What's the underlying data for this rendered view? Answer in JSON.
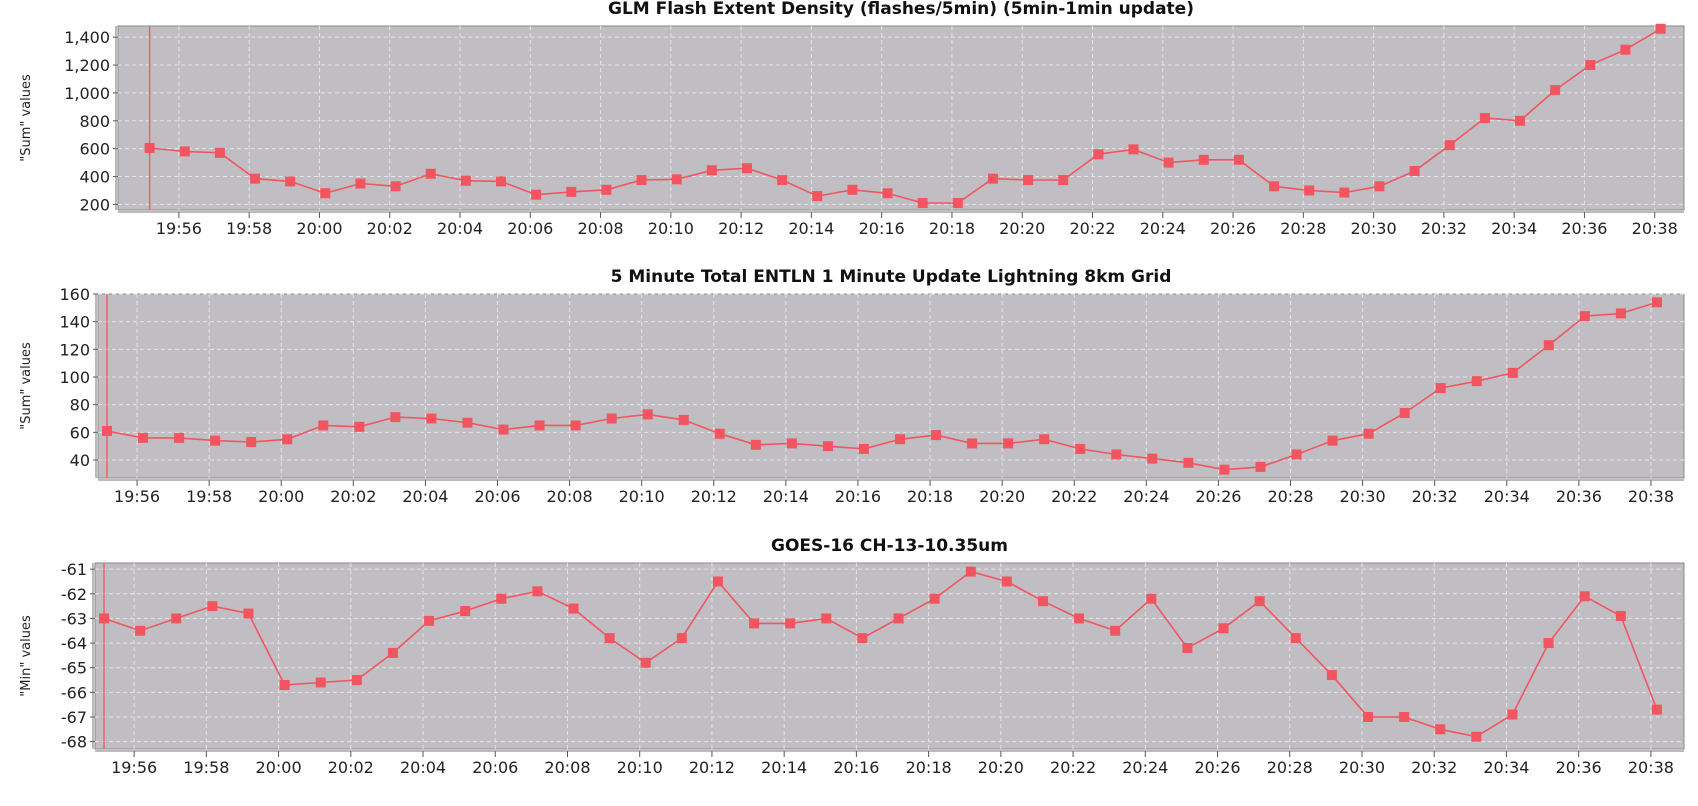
{
  "colors": {
    "plot_background": "#c1bec3",
    "grid": "#e4e3e6",
    "series": "#f25560",
    "marker_line": "#e8636a"
  },
  "chart_data": [
    {
      "type": "line",
      "title": "GLM Flash Extent Density (flashes/5min) (5min-1min update)",
      "ylabel": "\"Sum\" values",
      "ylim": [
        160,
        1480
      ],
      "yticks": [
        200,
        400,
        600,
        800,
        1000,
        1200,
        1400
      ],
      "ytick_labels": [
        "200",
        "400",
        "600",
        "800",
        "1,000",
        "1,200",
        "1,400"
      ],
      "xlim": [
        "19:54:16",
        "20:38:50"
      ],
      "xtick_labels": [
        "19:56",
        "19:58",
        "20:00",
        "20:02",
        "20:04",
        "20:06",
        "20:08",
        "20:10",
        "20:12",
        "20:14",
        "20:16",
        "20:18",
        "20:20",
        "20:22",
        "20:24",
        "20:26",
        "20:28",
        "20:30",
        "20:32",
        "20:34",
        "20:36",
        "20:38"
      ],
      "marker_time": "19:55:10",
      "grid": true,
      "x": [
        "19:55:10",
        "19:56:10",
        "19:57:10",
        "19:58:10",
        "19:59:10",
        "20:00:10",
        "20:01:10",
        "20:02:10",
        "20:03:10",
        "20:04:10",
        "20:05:10",
        "20:06:10",
        "20:07:10",
        "20:08:10",
        "20:09:10",
        "20:10:10",
        "20:11:10",
        "20:12:10",
        "20:13:10",
        "20:14:10",
        "20:15:10",
        "20:16:10",
        "20:17:10",
        "20:18:10",
        "20:19:10",
        "20:20:10",
        "20:21:10",
        "20:22:10",
        "20:23:10",
        "20:24:10",
        "20:25:10",
        "20:26:10",
        "20:27:10",
        "20:28:10",
        "20:29:10",
        "20:30:10",
        "20:31:10",
        "20:32:10",
        "20:33:10",
        "20:34:10",
        "20:35:10",
        "20:36:10",
        "20:37:10",
        "20:38:10"
      ],
      "values": [
        605,
        580,
        570,
        385,
        365,
        280,
        350,
        330,
        420,
        370,
        365,
        270,
        290,
        305,
        375,
        380,
        445,
        460,
        375,
        260,
        305,
        280,
        210,
        210,
        385,
        375,
        375,
        560,
        595,
        500,
        520,
        520,
        330,
        300,
        285,
        330,
        440,
        625,
        820,
        800,
        1020,
        1200,
        1310,
        1460
      ]
    },
    {
      "type": "line",
      "title": "5 Minute Total ENTLN 1 Minute Update Lightning 8km Grid",
      "ylabel": "\"Sum\" values",
      "ylim": [
        27,
        160
      ],
      "yticks": [
        40,
        60,
        80,
        100,
        120,
        140,
        160
      ],
      "ytick_labels": [
        "40",
        "60",
        "80",
        "100",
        "120",
        "140",
        "160"
      ],
      "xlim": [
        "19:54:55",
        "20:38:55"
      ],
      "xtick_labels": [
        "19:56",
        "19:58",
        "20:00",
        "20:02",
        "20:04",
        "20:06",
        "20:08",
        "20:10",
        "20:12",
        "20:14",
        "20:16",
        "20:18",
        "20:20",
        "20:22",
        "20:24",
        "20:26",
        "20:28",
        "20:30",
        "20:32",
        "20:34",
        "20:36",
        "20:38"
      ],
      "marker_time": "19:55:10",
      "grid": true,
      "x": [
        "19:55:10",
        "19:56:10",
        "19:57:10",
        "19:58:10",
        "19:59:10",
        "20:00:10",
        "20:01:10",
        "20:02:10",
        "20:03:10",
        "20:04:10",
        "20:05:10",
        "20:06:10",
        "20:07:10",
        "20:08:10",
        "20:09:10",
        "20:10:10",
        "20:11:10",
        "20:12:10",
        "20:13:10",
        "20:14:10",
        "20:15:10",
        "20:16:10",
        "20:17:10",
        "20:18:10",
        "20:19:10",
        "20:20:10",
        "20:21:10",
        "20:22:10",
        "20:23:10",
        "20:24:10",
        "20:25:10",
        "20:26:10",
        "20:27:10",
        "20:28:10",
        "20:29:10",
        "20:30:10",
        "20:31:10",
        "20:32:10",
        "20:33:10",
        "20:34:10",
        "20:35:10",
        "20:36:10",
        "20:37:10",
        "20:38:10"
      ],
      "values": [
        61,
        56,
        56,
        54,
        53,
        55,
        65,
        64,
        71,
        70,
        67,
        62,
        65,
        65,
        70,
        73,
        69,
        59,
        51,
        52,
        50,
        48,
        55,
        58,
        52,
        52,
        55,
        48,
        44,
        41,
        38,
        33,
        35,
        44,
        54,
        59,
        74,
        92,
        97,
        103,
        123,
        144,
        146,
        154
      ]
    },
    {
      "type": "line",
      "title": "GOES-16 CH-13-10.35um",
      "ylabel": "\"Min\" values",
      "ylim": [
        -68.3,
        -60.75
      ],
      "yticks": [
        -61,
        -62,
        -63,
        -64,
        -65,
        -66,
        -67,
        -68
      ],
      "ytick_labels": [
        "-61",
        "-62",
        "-63",
        "-64",
        "-65",
        "-66",
        "-67",
        "-68"
      ],
      "xlim": [
        "19:54:55",
        "20:38:55"
      ],
      "xtick_labels": [
        "19:56",
        "19:58",
        "20:00",
        "20:02",
        "20:04",
        "20:06",
        "20:08",
        "20:10",
        "20:12",
        "20:14",
        "20:16",
        "20:18",
        "20:20",
        "20:22",
        "20:24",
        "20:26",
        "20:28",
        "20:30",
        "20:32",
        "20:34",
        "20:36",
        "20:38"
      ],
      "marker_time": "19:55:10",
      "grid": true,
      "x": [
        "19:55:10",
        "19:56:10",
        "19:57:10",
        "19:58:10",
        "19:59:10",
        "20:00:10",
        "20:01:10",
        "20:02:10",
        "20:03:10",
        "20:04:10",
        "20:05:10",
        "20:06:10",
        "20:07:10",
        "20:08:10",
        "20:09:10",
        "20:10:10",
        "20:11:10",
        "20:12:10",
        "20:13:10",
        "20:14:10",
        "20:15:10",
        "20:16:10",
        "20:17:10",
        "20:18:10",
        "20:19:10",
        "20:20:10",
        "20:21:10",
        "20:22:10",
        "20:23:10",
        "20:24:10",
        "20:25:10",
        "20:26:10",
        "20:27:10",
        "20:28:10",
        "20:29:10",
        "20:30:10",
        "20:31:10",
        "20:32:10",
        "20:33:10",
        "20:34:10",
        "20:35:10",
        "20:36:10",
        "20:37:10",
        "20:38:10"
      ],
      "values": [
        -63.0,
        -63.5,
        -63.0,
        -62.5,
        -62.8,
        -65.7,
        -65.6,
        -65.5,
        -64.4,
        -63.1,
        -62.7,
        -62.2,
        -61.9,
        -62.6,
        -63.8,
        -64.8,
        -63.8,
        -61.5,
        -63.2,
        -63.2,
        -63.0,
        -63.8,
        -63.0,
        -62.2,
        -61.1,
        -61.5,
        -62.3,
        -63.0,
        -63.5,
        -62.2,
        -64.2,
        -63.4,
        -62.3,
        -63.8,
        -65.3,
        -67.0,
        -67.0,
        -67.5,
        -67.8,
        -66.9,
        -64.0,
        -62.1,
        -62.9,
        -66.7
      ]
    }
  ]
}
